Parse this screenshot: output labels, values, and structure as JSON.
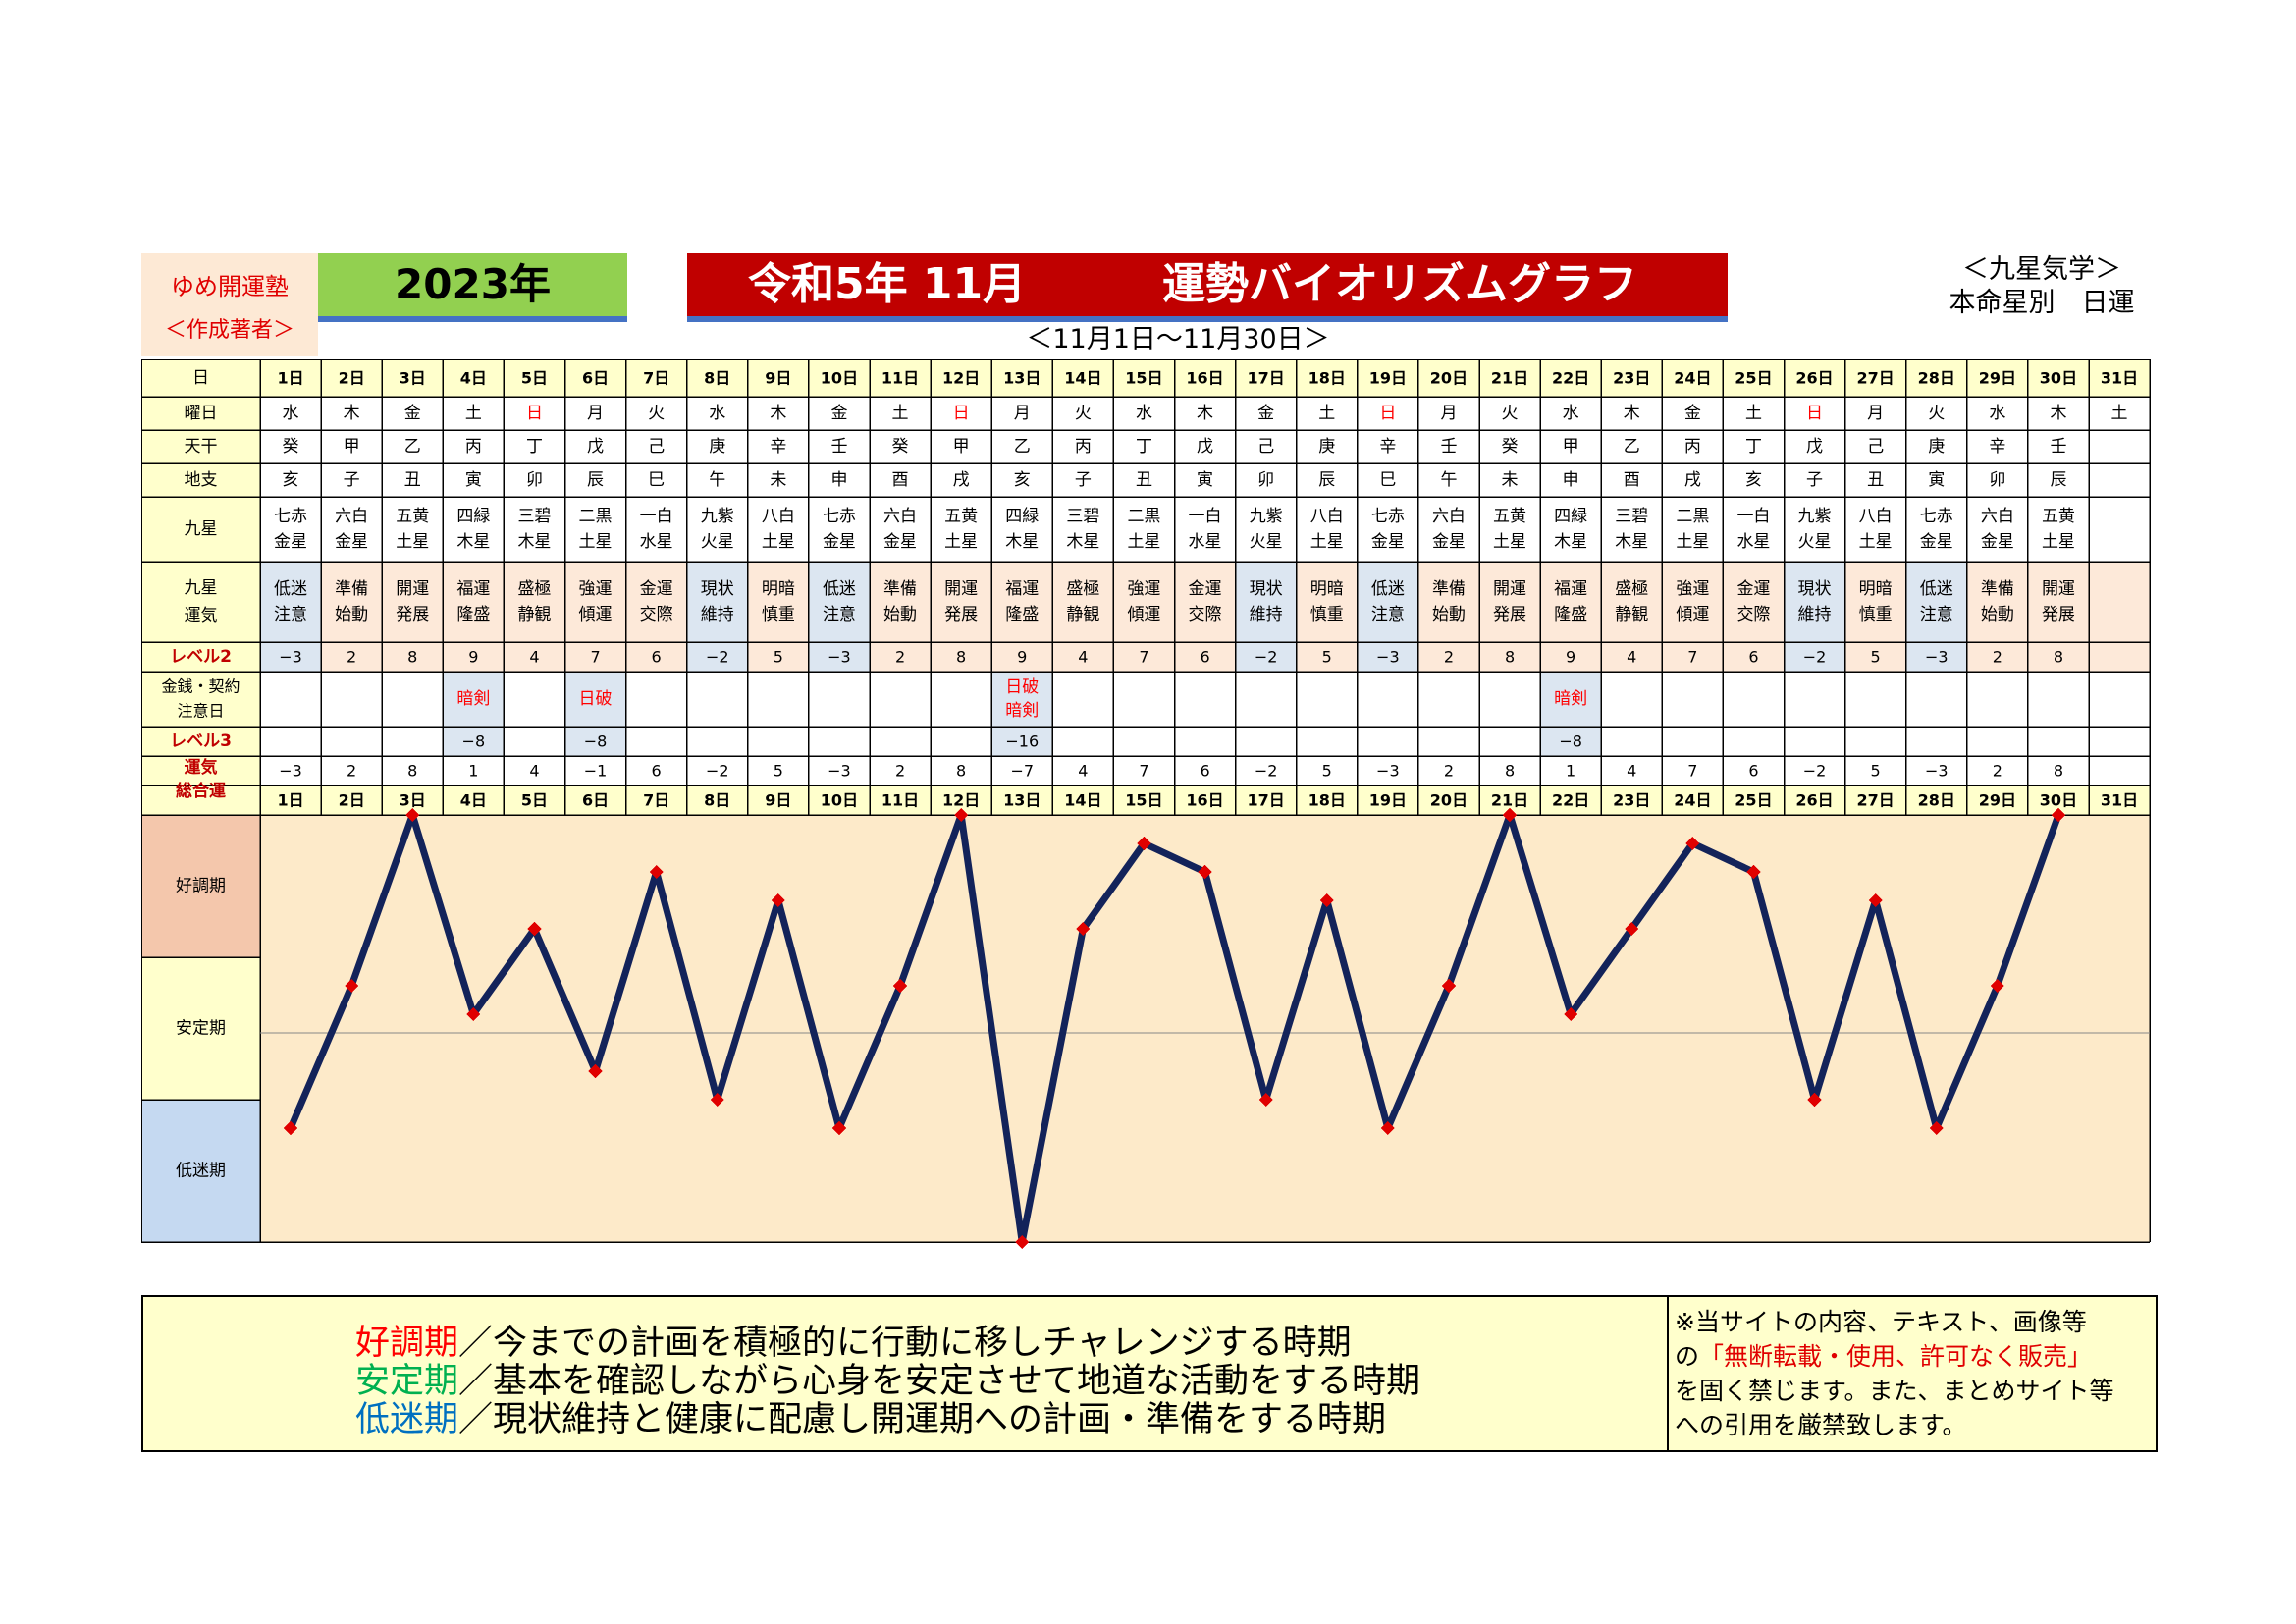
{
  "header": {
    "author_line1": "ゆめ開運塾",
    "author_line2": "＜作成著者＞",
    "year": "2023年",
    "title_part1": "令和5年 11月",
    "title_part2": "運勢バイオリズムグラフ",
    "subtitle": "＜11月1日～11月30日＞",
    "school_line1": "＜九星気学＞",
    "school_line2": "本命星別　日運"
  },
  "row_labels": {
    "day": "日",
    "weekday": "曜日",
    "tenkan": "天干",
    "chishi": "地支",
    "kyusei": "九星",
    "kyusei_unki_1": "九星",
    "kyusei_unki_2": "運気",
    "level2": "レベル2",
    "money_1": "金銭・契約",
    "money_2": "注意日",
    "level3": "レベル3",
    "total_1": "運気",
    "total_2": "総合運"
  },
  "days": [
    "1日",
    "2日",
    "3日",
    "4日",
    "5日",
    "6日",
    "7日",
    "8日",
    "9日",
    "10日",
    "11日",
    "12日",
    "13日",
    "14日",
    "15日",
    "16日",
    "17日",
    "18日",
    "19日",
    "20日",
    "21日",
    "22日",
    "23日",
    "24日",
    "25日",
    "26日",
    "27日",
    "28日",
    "29日",
    "30日",
    "31日"
  ],
  "weekdays": [
    "水",
    "木",
    "金",
    "土",
    "日",
    "月",
    "火",
    "水",
    "木",
    "金",
    "土",
    "日",
    "月",
    "火",
    "水",
    "木",
    "金",
    "土",
    "日",
    "月",
    "火",
    "水",
    "木",
    "金",
    "土",
    "日",
    "月",
    "火",
    "水",
    "木",
    "土"
  ],
  "tenkan": [
    "癸",
    "甲",
    "乙",
    "丙",
    "丁",
    "戊",
    "己",
    "庚",
    "辛",
    "壬",
    "癸",
    "甲",
    "乙",
    "丙",
    "丁",
    "戊",
    "己",
    "庚",
    "辛",
    "壬",
    "癸",
    "甲",
    "乙",
    "丙",
    "丁",
    "戊",
    "己",
    "庚",
    "辛",
    "壬",
    ""
  ],
  "chishi": [
    "亥",
    "子",
    "丑",
    "寅",
    "卯",
    "辰",
    "巳",
    "午",
    "未",
    "申",
    "酉",
    "戌",
    "亥",
    "子",
    "丑",
    "寅",
    "卯",
    "辰",
    "巳",
    "午",
    "未",
    "申",
    "酉",
    "戌",
    "亥",
    "子",
    "丑",
    "寅",
    "卯",
    "辰",
    ""
  ],
  "kyusei": [
    [
      "七赤",
      "金星"
    ],
    [
      "六白",
      "金星"
    ],
    [
      "五黄",
      "土星"
    ],
    [
      "四緑",
      "木星"
    ],
    [
      "三碧",
      "木星"
    ],
    [
      "二黒",
      "土星"
    ],
    [
      "一白",
      "水星"
    ],
    [
      "九紫",
      "火星"
    ],
    [
      "八白",
      "土星"
    ],
    [
      "七赤",
      "金星"
    ],
    [
      "六白",
      "金星"
    ],
    [
      "五黄",
      "土星"
    ],
    [
      "四緑",
      "木星"
    ],
    [
      "三碧",
      "木星"
    ],
    [
      "二黒",
      "土星"
    ],
    [
      "一白",
      "水星"
    ],
    [
      "九紫",
      "火星"
    ],
    [
      "八白",
      "土星"
    ],
    [
      "七赤",
      "金星"
    ],
    [
      "六白",
      "金星"
    ],
    [
      "五黄",
      "土星"
    ],
    [
      "四緑",
      "木星"
    ],
    [
      "三碧",
      "木星"
    ],
    [
      "二黒",
      "土星"
    ],
    [
      "一白",
      "水星"
    ],
    [
      "九紫",
      "火星"
    ],
    [
      "八白",
      "土星"
    ],
    [
      "七赤",
      "金星"
    ],
    [
      "六白",
      "金星"
    ],
    [
      "五黄",
      "土星"
    ],
    [
      "",
      ""
    ]
  ],
  "unki": [
    [
      "低迷",
      "注意"
    ],
    [
      "準備",
      "始動"
    ],
    [
      "開運",
      "発展"
    ],
    [
      "福運",
      "隆盛"
    ],
    [
      "盛極",
      "静観"
    ],
    [
      "強運",
      "傾運"
    ],
    [
      "金運",
      "交際"
    ],
    [
      "現状",
      "維持"
    ],
    [
      "明暗",
      "慎重"
    ],
    [
      "低迷",
      "注意"
    ],
    [
      "準備",
      "始動"
    ],
    [
      "開運",
      "発展"
    ],
    [
      "福運",
      "隆盛"
    ],
    [
      "盛極",
      "静観"
    ],
    [
      "強運",
      "傾運"
    ],
    [
      "金運",
      "交際"
    ],
    [
      "現状",
      "維持"
    ],
    [
      "明暗",
      "慎重"
    ],
    [
      "低迷",
      "注意"
    ],
    [
      "準備",
      "始動"
    ],
    [
      "開運",
      "発展"
    ],
    [
      "福運",
      "隆盛"
    ],
    [
      "盛極",
      "静観"
    ],
    [
      "強運",
      "傾運"
    ],
    [
      "金運",
      "交際"
    ],
    [
      "現状",
      "維持"
    ],
    [
      "明暗",
      "慎重"
    ],
    [
      "低迷",
      "注意"
    ],
    [
      "準備",
      "始動"
    ],
    [
      "開運",
      "発展"
    ],
    [
      "",
      ""
    ]
  ],
  "level2": [
    "−3",
    "2",
    "8",
    "9",
    "4",
    "7",
    "6",
    "−2",
    "5",
    "−3",
    "2",
    "8",
    "9",
    "4",
    "7",
    "6",
    "−2",
    "5",
    "−3",
    "2",
    "8",
    "9",
    "4",
    "7",
    "6",
    "−2",
    "5",
    "−3",
    "2",
    "8",
    ""
  ],
  "money": [
    [],
    [],
    [],
    [
      "暗剣"
    ],
    [],
    [
      "日破"
    ],
    [],
    [],
    [],
    [],
    [],
    [],
    [
      "日破",
      "暗剣"
    ],
    [],
    [],
    [],
    [],
    [],
    [],
    [],
    [],
    [
      "暗剣"
    ],
    [],
    [],
    [],
    [],
    [],
    [],
    [],
    [],
    []
  ],
  "level3": [
    "",
    "",
    "",
    "−8",
    "",
    "−8",
    "",
    "",
    "",
    "",
    "",
    "",
    "−16",
    "",
    "",
    "",
    "",
    "",
    "",
    "",
    "",
    "−8",
    "",
    "",
    "",
    "",
    "",
    "",
    "",
    "",
    ""
  ],
  "total": [
    "−3",
    "2",
    "8",
    "1",
    "4",
    "−1",
    "6",
    "−2",
    "5",
    "−3",
    "2",
    "8",
    "−7",
    "4",
    "7",
    "6",
    "−2",
    "5",
    "−3",
    "2",
    "8",
    "1",
    "4",
    "7",
    "6",
    "−2",
    "5",
    "−3",
    "2",
    "8",
    ""
  ],
  "bands": {
    "good": "好調期",
    "stable": "安定期",
    "low": "低迷期"
  },
  "legend": [
    {
      "key": "好調期",
      "text": "／今までの計画を積極的に行動に移しチャレンジする時期",
      "color": "#ff0000"
    },
    {
      "key": "安定期",
      "text": "／基本を確認しながら心身を安定させて地道な活動をする時期",
      "color": "#00b050"
    },
    {
      "key": "低迷期",
      "text": "／現状維持と健康に配慮し開運期への計画・準備をする時期",
      "color": "#0070c0"
    }
  ],
  "notice": {
    "line1": "※当サイトの内容、テキスト、画像等",
    "line2_pre": "の",
    "line2_red": "「無断転載・使用、許可なく販売」",
    "line3": "を固く禁じます。また、まとめサイト等",
    "line4": "への引用を厳禁致します。"
  },
  "colors": {
    "title_bg": "#c00000",
    "year_bg": "#92d050",
    "header_bg": "#ffffcc",
    "author_bg": "#fde9d5",
    "cell_low": "#dce6f1",
    "cell_good": "#fde9d9",
    "chart_bg": "#fdeac9",
    "band_good": "#f4c7ac",
    "band_stable": "#ffffcc",
    "band_low": "#c5d9f1",
    "line": "#13235a",
    "marker": "#e00000",
    "sunday": "#ff0000",
    "level_label": "#c00000"
  },
  "chart_data": {
    "type": "line",
    "x": [
      1,
      2,
      3,
      4,
      5,
      6,
      7,
      8,
      9,
      10,
      11,
      12,
      13,
      14,
      15,
      16,
      17,
      18,
      19,
      20,
      21,
      22,
      23,
      24,
      25,
      26,
      27,
      28,
      29,
      30
    ],
    "series": [
      {
        "values": [
          -3,
          2,
          8,
          1,
          4,
          -1,
          6,
          -2,
          5,
          -3,
          2,
          8,
          -7,
          4,
          7,
          6,
          -2,
          5,
          -3,
          2,
          8,
          1,
          4,
          7,
          6,
          -2,
          5,
          -3,
          2,
          8
        ]
      }
    ],
    "ylim": [
      -7,
      8
    ],
    "grid": false,
    "xlabel": "",
    "ylabel": ""
  }
}
